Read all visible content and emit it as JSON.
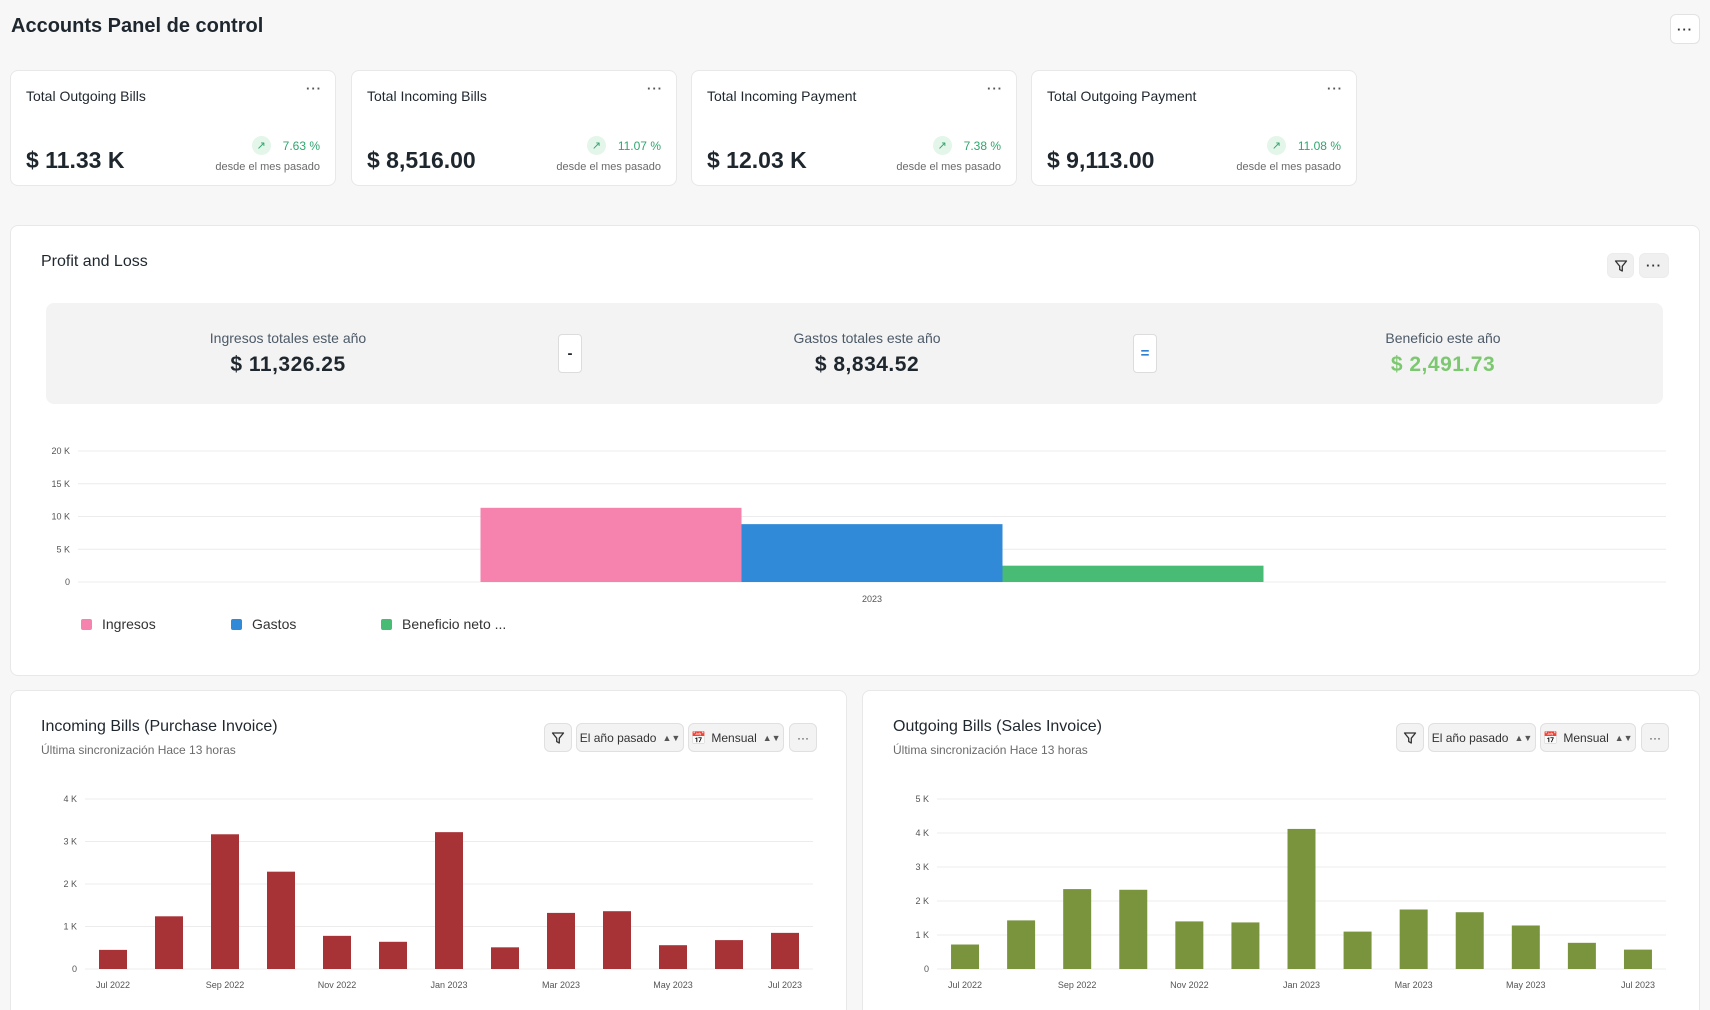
{
  "page": {
    "title": "Accounts Panel de control",
    "menu_label": "···"
  },
  "number_cards": [
    {
      "label": "Total Outgoing Bills",
      "value": "$ 11.33 K",
      "change": "7.63 %",
      "since": "desde el mes pasado",
      "menu": "···"
    },
    {
      "label": "Total Incoming Bills",
      "value": "$ 8,516.00",
      "change": "11.07 %",
      "since": "desde el mes pasado",
      "menu": "···"
    },
    {
      "label": "Total Incoming Payment",
      "value": "$ 12.03 K",
      "change": "7.38 %",
      "since": "desde el mes pasado",
      "menu": "···"
    },
    {
      "label": "Total Outgoing Payment",
      "value": "$ 9,113.00",
      "change": "11.08 %",
      "since": "desde el mes pasado",
      "menu": "···"
    }
  ],
  "profit_loss": {
    "title": "Profit and Loss",
    "menu": "···",
    "filter_icon": "filter-icon",
    "summary": {
      "income_label": "Ingresos totales este año",
      "income_value": "$ 11,326.25",
      "minus": "-",
      "expense_label": "Gastos totales este año",
      "expense_value": "$ 8,834.52",
      "equals": "=",
      "profit_label": "Beneficio este año",
      "profit_value": "$ 2,491.73"
    },
    "legend": [
      "Ingresos",
      "Gastos",
      "Beneficio neto ..."
    ]
  },
  "incoming_bills": {
    "title": "Incoming Bills (Purchase Invoice)",
    "sync": "Última sincronización Hace 13 horas",
    "period": "El año pasado",
    "interval": "Mensual",
    "menu": "···"
  },
  "outgoing_bills": {
    "title": "Outgoing Bills (Sales Invoice)",
    "sync": "Última sincronización Hace 13 horas",
    "period": "El año pasado",
    "interval": "Mensual",
    "menu": "···"
  },
  "colors": {
    "income": "#f683ae",
    "expense": "#318ad8",
    "profit": "#48bb74",
    "incoming_bars": "#a83337",
    "outgoing_bars": "#7a943e",
    "positive": "#30a66d"
  },
  "chart_data": [
    {
      "type": "bar",
      "categories": [
        "2023"
      ],
      "series": [
        {
          "name": "Ingresos",
          "values": [
            11326.25
          ]
        },
        {
          "name": "Gastos",
          "values": [
            8834.52
          ]
        },
        {
          "name": "Beneficio neto ...",
          "values": [
            2491.73
          ]
        }
      ],
      "ylim": [
        0,
        20000
      ],
      "yticks": [
        "0",
        "5 K",
        "10 K",
        "15 K",
        "20 K"
      ],
      "grid": true,
      "legend": "bottom-left"
    },
    {
      "type": "bar",
      "categories": [
        "Jul 2022",
        "Aug 2022",
        "Sep 2022",
        "Oct 2022",
        "Nov 2022",
        "Dec 2022",
        "Jan 2023",
        "Feb 2023",
        "Mar 2023",
        "Apr 2023",
        "May 2023",
        "Jun 2023",
        "Jul 2023"
      ],
      "xtick_labels": [
        "Jul 2022",
        "Sep 2022",
        "Nov 2022",
        "Jan 2023",
        "Mar 2023",
        "May 2023",
        "Jul 2023"
      ],
      "values": [
        450,
        1240,
        3170,
        2290,
        780,
        640,
        3220,
        510,
        1320,
        1360,
        560,
        680,
        850
      ],
      "ylim": [
        0,
        4000
      ],
      "yticks": [
        "0",
        "1 K",
        "2 K",
        "3 K",
        "4 K"
      ],
      "grid": true
    },
    {
      "type": "bar",
      "categories": [
        "Jul 2022",
        "Aug 2022",
        "Sep 2022",
        "Oct 2022",
        "Nov 2022",
        "Dec 2022",
        "Jan 2023",
        "Feb 2023",
        "Mar 2023",
        "Apr 2023",
        "May 2023",
        "Jun 2023",
        "Jul 2023"
      ],
      "xtick_labels": [
        "Jul 2022",
        "Sep 2022",
        "Nov 2022",
        "Jan 2023",
        "Mar 2023",
        "May 2023",
        "Jul 2023"
      ],
      "values": [
        720,
        1430,
        2350,
        2330,
        1400,
        1370,
        4120,
        1100,
        1750,
        1670,
        1280,
        770,
        570
      ],
      "ylim": [
        0,
        5000
      ],
      "yticks": [
        "0",
        "1 K",
        "2 K",
        "3 K",
        "4 K",
        "5 K"
      ],
      "grid": true
    }
  ]
}
